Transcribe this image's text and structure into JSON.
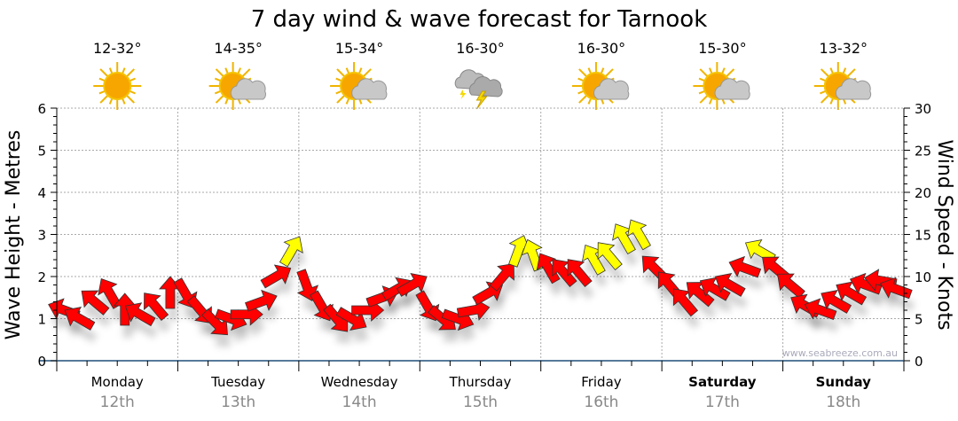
{
  "chart_data": {
    "type": "scatter",
    "title": "7 day wind & wave forecast for Tarnook",
    "ylabel_left": "Wave Height - Metres",
    "ylabel_right": "Wind Speed - Knots",
    "ylim_left": [
      0,
      6
    ],
    "ylim_right": [
      0,
      30
    ],
    "yticks_left": [
      "0",
      "1",
      "2",
      "3",
      "4",
      "5",
      "6"
    ],
    "yticks_right": [
      "0",
      "5",
      "10",
      "15",
      "20",
      "25",
      "30"
    ],
    "grid": true,
    "watermark": "www.seabreeze.com.au",
    "days": [
      {
        "name": "Monday",
        "date": "12th",
        "temp": "12-32°",
        "weather": "sunny",
        "bold": false
      },
      {
        "name": "Tuesday",
        "date": "13th",
        "temp": "14-35°",
        "weather": "partly-cloudy",
        "bold": false
      },
      {
        "name": "Wednesday",
        "date": "14th",
        "temp": "15-34°",
        "weather": "partly-cloudy",
        "bold": false
      },
      {
        "name": "Thursday",
        "date": "15th",
        "temp": "16-30°",
        "weather": "thunderstorm",
        "bold": false
      },
      {
        "name": "Friday",
        "date": "16th",
        "temp": "16-30°",
        "weather": "partly-cloudy",
        "bold": false
      },
      {
        "name": "Saturday",
        "date": "17th",
        "temp": "15-30°",
        "weather": "partly-cloudy",
        "bold": true
      },
      {
        "name": "Sunday",
        "date": "18th",
        "temp": "13-32°",
        "weather": "partly-cloudy",
        "bold": true
      }
    ],
    "wind": {
      "interval_hours": 3,
      "speed_knots": [
        6,
        5,
        7,
        8,
        6,
        5.5,
        6.5,
        8,
        8,
        6,
        4.5,
        5,
        5.5,
        7,
        10,
        13,
        9,
        6.5,
        5,
        5,
        6,
        7.5,
        8.5,
        9,
        6.5,
        5,
        5,
        6,
        8,
        10,
        13,
        12.5,
        11,
        10.5,
        10.5,
        12,
        12.5,
        14.5,
        15,
        11,
        9,
        7,
        8,
        8.5,
        9,
        11,
        13,
        11,
        9,
        6.5,
        6,
        7,
        8,
        9,
        9.5,
        8.5
      ],
      "heading_deg": [
        290,
        300,
        310,
        330,
        0,
        300,
        320,
        0,
        150,
        140,
        135,
        110,
        90,
        70,
        60,
        30,
        160,
        150,
        140,
        120,
        90,
        70,
        60,
        60,
        150,
        130,
        110,
        80,
        60,
        40,
        20,
        340,
        330,
        320,
        320,
        330,
        320,
        330,
        330,
        315,
        320,
        320,
        310,
        300,
        300,
        290,
        300,
        310,
        310,
        300,
        290,
        300,
        300,
        290,
        280,
        290
      ],
      "strong_threshold_knots": 12,
      "colors": {
        "normal": "#ff0000",
        "strong": "#ffff00"
      }
    }
  }
}
